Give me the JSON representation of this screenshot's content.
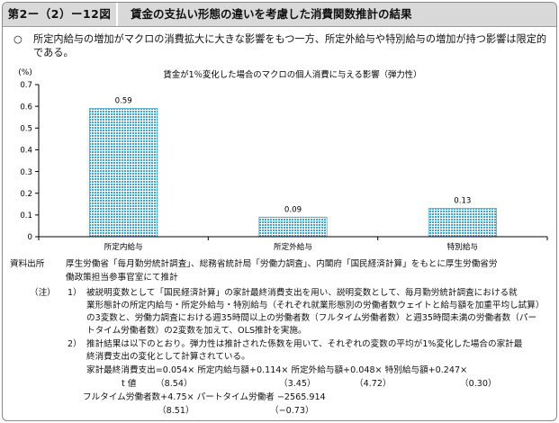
{
  "header": {
    "figure_number": "第2ー（2）ー12図",
    "title": "賃金の支払い形態の違いを考慮した消費関数推計の結果"
  },
  "summary": {
    "bullet": "○",
    "text": "所定内給与の増加がマクロの消費拡大に大きな影響をもつ一方、所定外給与や特別給与の増加が持つ影響は限定的である。"
  },
  "chart_data": {
    "type": "bar",
    "title": "賃金が1％変化した場合のマクロの個人消費に与える影響（弾力性）",
    "ylabel": "(%)",
    "xlabel": "",
    "categories": [
      "所定内給与",
      "所定外給与",
      "特別給与"
    ],
    "values": [
      0.59,
      0.09,
      0.13
    ],
    "value_labels": [
      "0.59",
      "0.09",
      "0.13"
    ],
    "ylim": [
      0,
      0.7
    ],
    "yticks": [
      0,
      0.1,
      0.2,
      0.3,
      0.4,
      0.5,
      0.6,
      0.7
    ],
    "ytick_labels": [
      "0",
      "0.1",
      "0.2",
      "0.3",
      "0.4",
      "0.5",
      "0.6",
      "0.7"
    ],
    "grid": false,
    "bar_color": "#3fa8d0",
    "bar_pattern": "dotted"
  },
  "notes": {
    "source_label": "資料出所",
    "source_line1": "厚生労働省「毎月勤労統計調査」、総務省統計局「労働力調査」、内閣府「国民経済計算」をもとに厚生労働省労",
    "source_line2": "働政策担当参事官室にて推計",
    "note_label": "（注）",
    "note1_num": "1）",
    "note1_line1": "被説明変数として「国民経済計算」の家計最終消費支出を用い、説明変数として、毎月勤労統計調査における就",
    "note1_line2": "業形態計の所定内給与・所定外給与・特別給与（それぞれ就業形態別の労働者数ウェイトと給与額を加重平均し試算）",
    "note1_line3": "の3変数と、労働力調査における週35時間以上の労働者数（フルタイム労働者数）と週35時間未満の労働者数（パー",
    "note1_line4": "トタイム労働者数）の2変数を加えて、OLS推計を実施。",
    "note2_num": "2）",
    "note2_line1": "推計結果は以下のとおり。弾力性は推計された係数を用いて、それぞれの変数の平均が1%変化した場合の家計最",
    "note2_line2": "終消費支出の変化として計算されている。",
    "eq1": "家計最終消費支出=0.054× 所定内給与額+0.114× 所定外給与額+0.048× 特別給与額+0.247×",
    "t_label": "t 値",
    "t1": "（8.54）",
    "t2": "（3.45）",
    "t3": "（4.72）",
    "t4": "（0.30）",
    "eq2": "フルタイム労働者数+4.75× パートタイム労働者  −2565.914",
    "t5": "（8.51）",
    "t6": "（−0.73）"
  }
}
